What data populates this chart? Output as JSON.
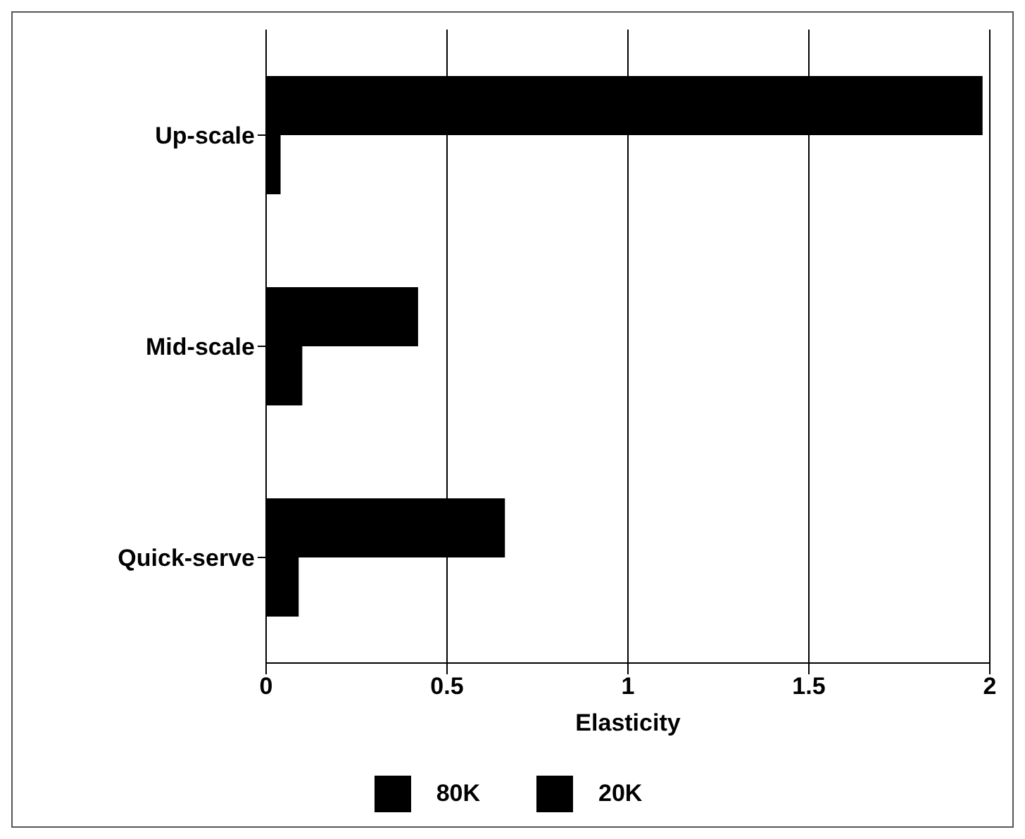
{
  "chart_data": {
    "type": "bar",
    "orientation": "horizontal",
    "xlabel": "Elasticity",
    "categories": [
      "Up-scale",
      "Mid-scale",
      "Quick-serve"
    ],
    "series": [
      {
        "name": "80K",
        "color": "#000000",
        "values": [
          1.98,
          0.42,
          0.66
        ]
      },
      {
        "name": "20K",
        "color": "#000000",
        "values": [
          0.04,
          0.1,
          0.09
        ]
      }
    ],
    "xlim": [
      0,
      2
    ],
    "xticks": [
      0,
      0.5,
      1,
      1.5,
      2
    ],
    "grid": "x",
    "legend": "bottom"
  }
}
